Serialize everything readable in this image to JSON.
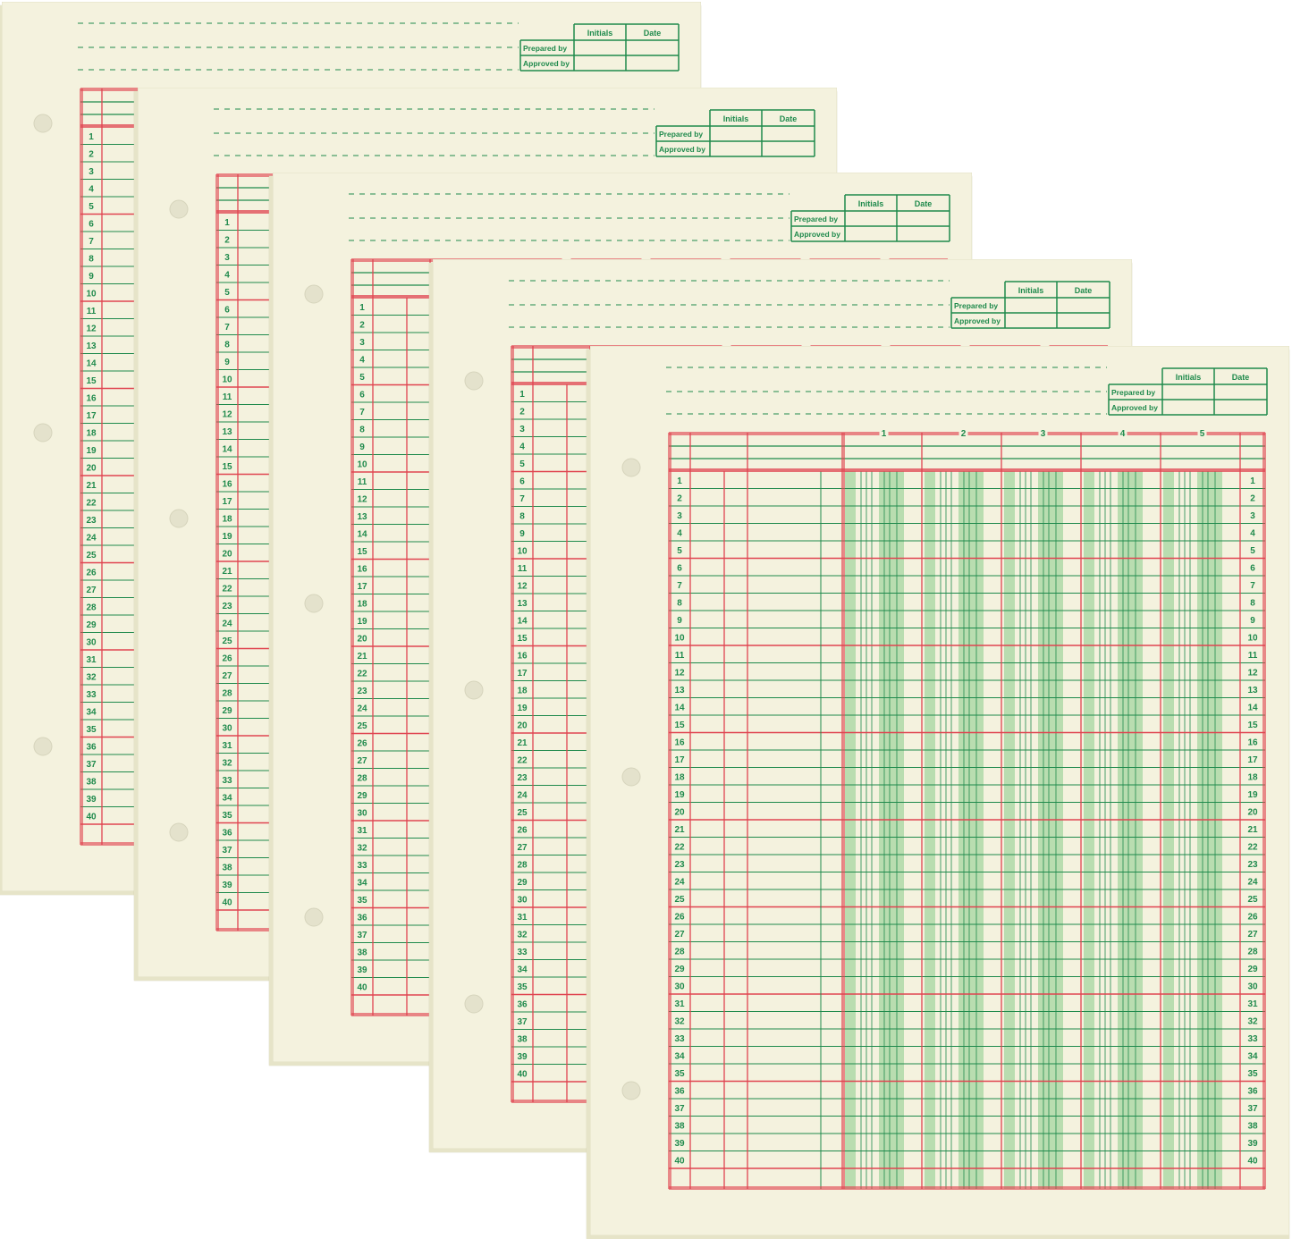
{
  "colors": {
    "paper": "#f4f2de",
    "paper_edge": "#e2e0c4",
    "green": "#1f8a4c",
    "red": "#e04450",
    "shade": "#b9ddb0",
    "hole": "#e4e2cc"
  },
  "signoff": {
    "initials_label": "Initials",
    "date_label": "Date",
    "prepared_label": "Prepared by",
    "approved_label": "Approved by"
  },
  "columns": [
    "1",
    "2",
    "3",
    "4",
    "5"
  ],
  "rows": [
    "1",
    "2",
    "3",
    "4",
    "5",
    "6",
    "7",
    "8",
    "9",
    "10",
    "11",
    "12",
    "13",
    "14",
    "15",
    "16",
    "17",
    "18",
    "19",
    "20",
    "21",
    "22",
    "23",
    "24",
    "25",
    "26",
    "27",
    "28",
    "29",
    "30",
    "31",
    "32",
    "33",
    "34",
    "35",
    "36",
    "37",
    "38",
    "39",
    "40"
  ],
  "sheet_count": 5
}
